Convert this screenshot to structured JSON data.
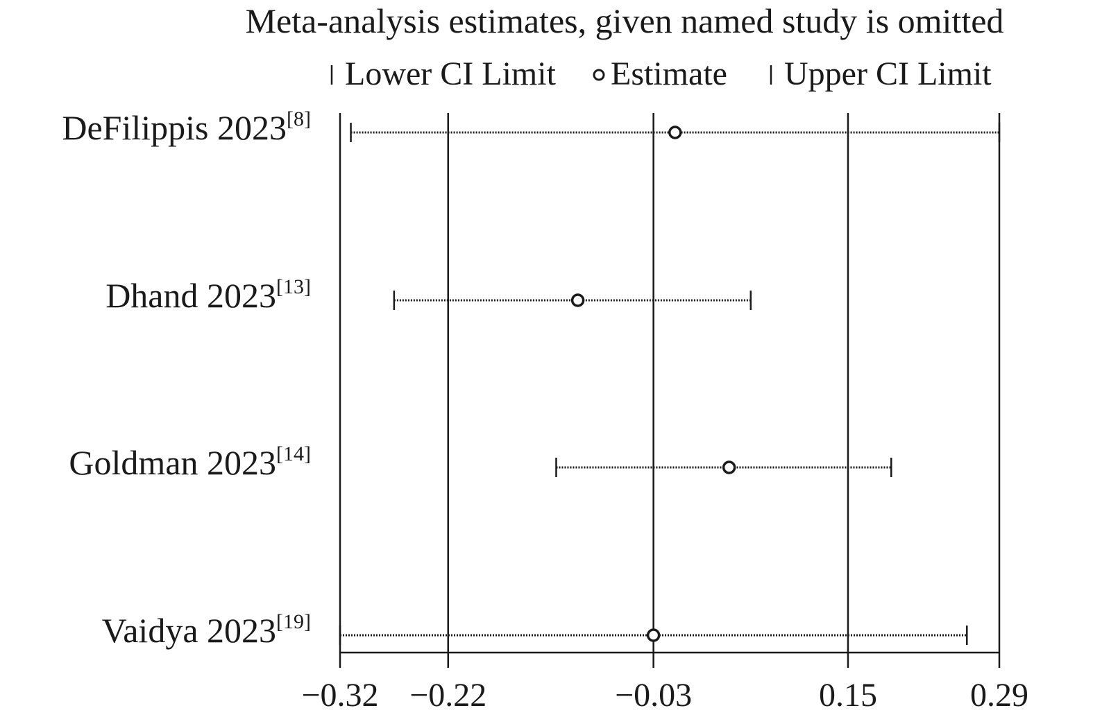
{
  "chart_data": {
    "type": "forest",
    "title": "Meta-analysis estimates, given named study is omitted",
    "legend": [
      {
        "symbol": "lower-tick",
        "label": "Lower CI Limit"
      },
      {
        "symbol": "circle",
        "label": "Estimate"
      },
      {
        "symbol": "upper-tick",
        "label": "Upper CI Limit"
      }
    ],
    "x_ticks": [
      "-0.32",
      "-0.22",
      "-0.03",
      "0.15",
      "0.29"
    ],
    "x_tick_values": [
      -0.32,
      -0.22,
      -0.03,
      0.15,
      0.29
    ],
    "xlim": [
      -0.32,
      0.29
    ],
    "vertical_gridlines": [
      -0.32,
      -0.22,
      -0.03,
      0.15,
      0.29
    ],
    "studies": [
      {
        "name": "DeFilippis 2023",
        "ref": "[8]",
        "lower": -0.31,
        "estimate": -0.01,
        "upper": 0.29
      },
      {
        "name": "Dhand 2023",
        "ref": "[13]",
        "lower": -0.27,
        "estimate": -0.1,
        "upper": 0.06
      },
      {
        "name": "Goldman 2023",
        "ref": "[14]",
        "lower": -0.12,
        "estimate": 0.04,
        "upper": 0.19
      },
      {
        "name": "Vaidya 2023",
        "ref": "[19]",
        "lower": -0.32,
        "estimate": -0.03,
        "upper": 0.26
      }
    ],
    "colors": {
      "line": "#1a1a1a",
      "background": "#ffffff"
    }
  }
}
